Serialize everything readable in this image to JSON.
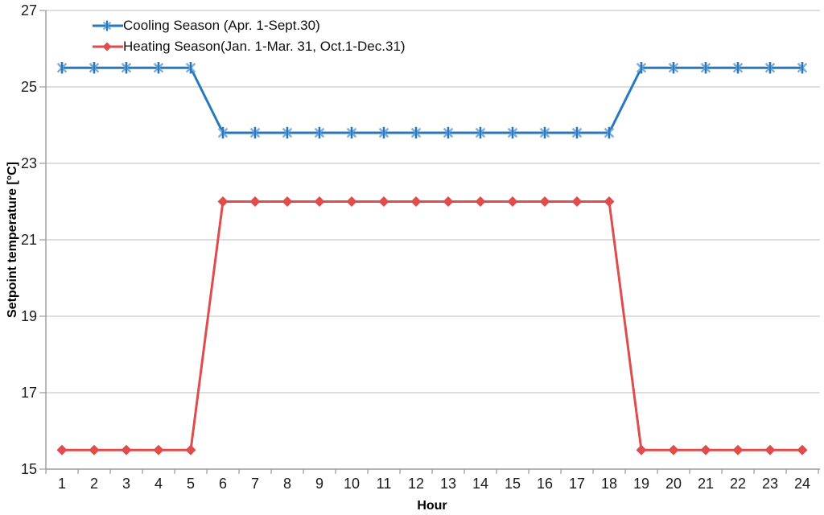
{
  "chart_data": {
    "type": "line",
    "xlabel": "Hour",
    "ylabel": "Setpoint temperature [°C]",
    "x": [
      1,
      2,
      3,
      4,
      5,
      6,
      7,
      8,
      9,
      10,
      11,
      12,
      13,
      14,
      15,
      16,
      17,
      18,
      19,
      20,
      21,
      22,
      23,
      24
    ],
    "ylim": [
      15,
      27
    ],
    "ytick_step": 2,
    "yticks": [
      15,
      17,
      19,
      21,
      23,
      25,
      27
    ],
    "grid": "horizontal",
    "legend_position": "top-left-inside",
    "series": [
      {
        "name": "Cooling Season (Apr. 1-Sept.30)",
        "color": "#2878BE",
        "marker": "asterisk",
        "marker_accent": "#7FAEDC",
        "values": [
          25.5,
          25.5,
          25.5,
          25.5,
          25.5,
          23.8,
          23.8,
          23.8,
          23.8,
          23.8,
          23.8,
          23.8,
          23.8,
          23.8,
          23.8,
          23.8,
          23.8,
          23.8,
          25.5,
          25.5,
          25.5,
          25.5,
          25.5,
          25.5
        ]
      },
      {
        "name": "Heating Season(Jan. 1-Mar. 31, Oct.1-Dec.31)",
        "color": "#E04B4B",
        "marker": "diamond",
        "marker_accent": "#E04B4B",
        "values": [
          15.5,
          15.5,
          15.5,
          15.5,
          15.5,
          22,
          22,
          22,
          22,
          22,
          22,
          22,
          22,
          22,
          22,
          22,
          22,
          22,
          15.5,
          15.5,
          15.5,
          15.5,
          15.5,
          15.5
        ]
      }
    ],
    "colors": {
      "axis": "#9B9B9B",
      "grid": "#C9C9C9",
      "text": "#1A1A1A",
      "background": "#FFFFFF"
    }
  }
}
